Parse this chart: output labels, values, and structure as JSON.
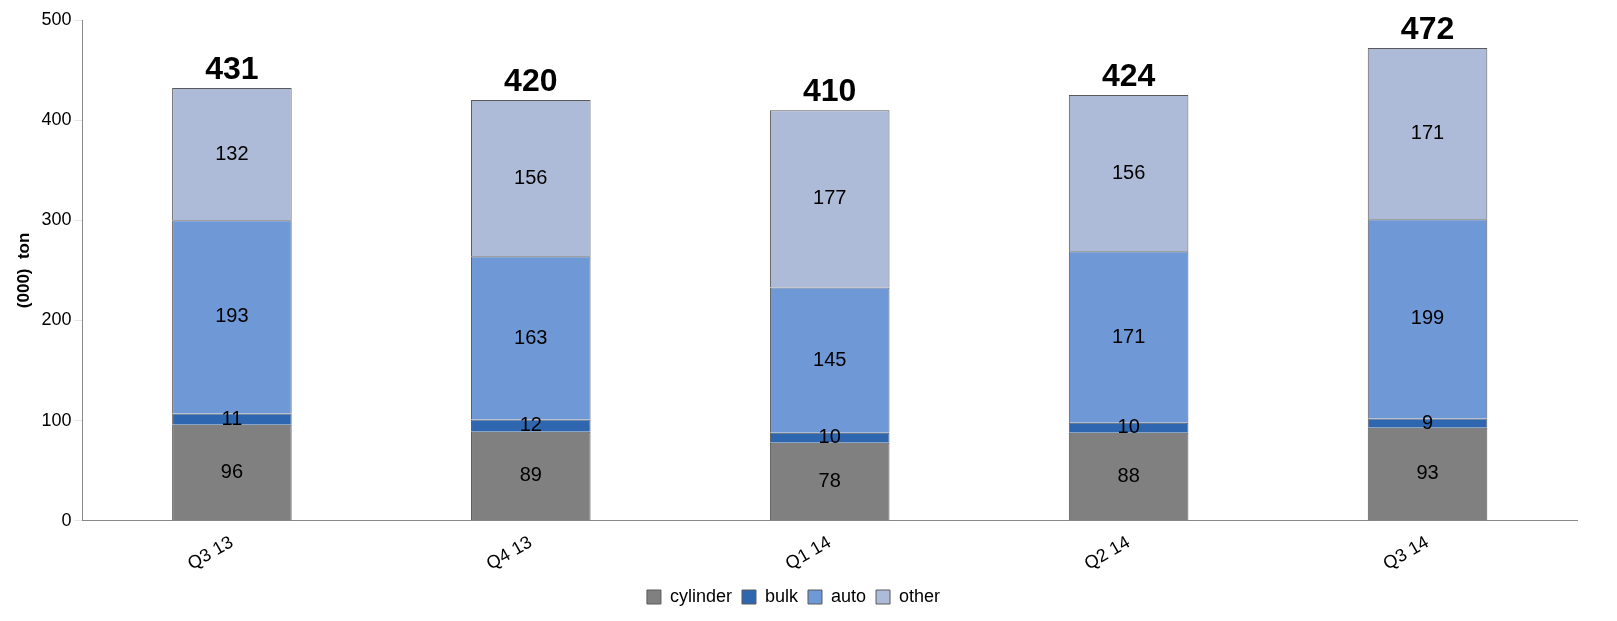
{
  "chart_data": {
    "type": "bar",
    "ylabel": "(000)  ton",
    "categories": [
      "Q3 13",
      "Q4 13",
      "Q1 14",
      "Q2 14",
      "Q3 14"
    ],
    "stacked": true,
    "ylim": [
      0,
      500
    ],
    "yticks": [
      0,
      100,
      200,
      300,
      400,
      500
    ],
    "grid": false,
    "legend": "bottom",
    "data_labels": true,
    "series": [
      {
        "name": "cylinder",
        "color": "#808080",
        "values": [
          96,
          89,
          78,
          88,
          93
        ]
      },
      {
        "name": "bulk",
        "color": "#2f66b0",
        "values": [
          11,
          12,
          10,
          10,
          9
        ]
      },
      {
        "name": "auto",
        "color": "#6f98d6",
        "values": [
          193,
          163,
          145,
          171,
          199
        ]
      },
      {
        "name": "other",
        "color": "#aebbd8",
        "values": [
          132,
          156,
          177,
          156,
          171
        ]
      }
    ],
    "totals": [
      "431",
      "420",
      "410",
      "424",
      "472"
    ]
  }
}
